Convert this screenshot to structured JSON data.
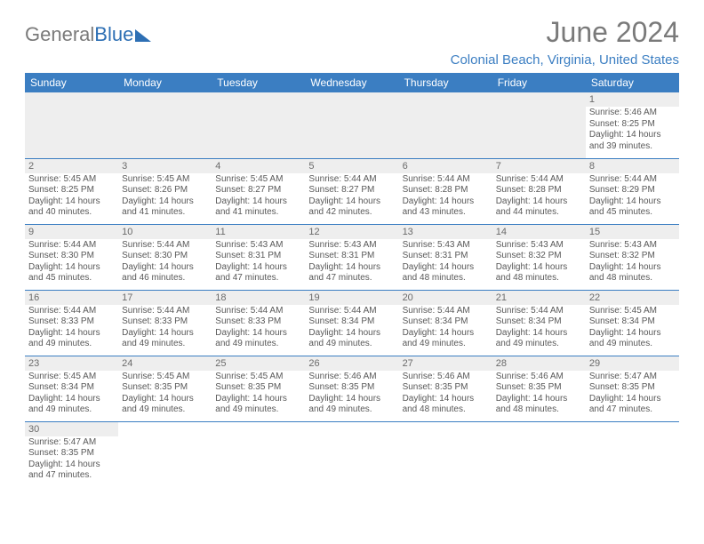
{
  "logo": {
    "gray_text": "General",
    "blue_text": "Blue"
  },
  "header": {
    "month_title": "June 2024",
    "location": "Colonial Beach, Virginia, United States"
  },
  "style": {
    "accent_color": "#3b7ec2",
    "header_bg": "#3b7ec2",
    "header_text": "#ffffff",
    "daynum_bg": "#eeeeee",
    "body_text": "#585858",
    "title_color": "#7a7a7a"
  },
  "weekdays": [
    "Sunday",
    "Monday",
    "Tuesday",
    "Wednesday",
    "Thursday",
    "Friday",
    "Saturday"
  ],
  "weeks": [
    [
      null,
      null,
      null,
      null,
      null,
      null,
      {
        "n": "1",
        "sr": "5:46 AM",
        "ss": "8:25 PM",
        "dl": "14 hours and 39 minutes."
      }
    ],
    [
      {
        "n": "2",
        "sr": "5:45 AM",
        "ss": "8:25 PM",
        "dl": "14 hours and 40 minutes."
      },
      {
        "n": "3",
        "sr": "5:45 AM",
        "ss": "8:26 PM",
        "dl": "14 hours and 41 minutes."
      },
      {
        "n": "4",
        "sr": "5:45 AM",
        "ss": "8:27 PM",
        "dl": "14 hours and 41 minutes."
      },
      {
        "n": "5",
        "sr": "5:44 AM",
        "ss": "8:27 PM",
        "dl": "14 hours and 42 minutes."
      },
      {
        "n": "6",
        "sr": "5:44 AM",
        "ss": "8:28 PM",
        "dl": "14 hours and 43 minutes."
      },
      {
        "n": "7",
        "sr": "5:44 AM",
        "ss": "8:28 PM",
        "dl": "14 hours and 44 minutes."
      },
      {
        "n": "8",
        "sr": "5:44 AM",
        "ss": "8:29 PM",
        "dl": "14 hours and 45 minutes."
      }
    ],
    [
      {
        "n": "9",
        "sr": "5:44 AM",
        "ss": "8:30 PM",
        "dl": "14 hours and 45 minutes."
      },
      {
        "n": "10",
        "sr": "5:44 AM",
        "ss": "8:30 PM",
        "dl": "14 hours and 46 minutes."
      },
      {
        "n": "11",
        "sr": "5:43 AM",
        "ss": "8:31 PM",
        "dl": "14 hours and 47 minutes."
      },
      {
        "n": "12",
        "sr": "5:43 AM",
        "ss": "8:31 PM",
        "dl": "14 hours and 47 minutes."
      },
      {
        "n": "13",
        "sr": "5:43 AM",
        "ss": "8:31 PM",
        "dl": "14 hours and 48 minutes."
      },
      {
        "n": "14",
        "sr": "5:43 AM",
        "ss": "8:32 PM",
        "dl": "14 hours and 48 minutes."
      },
      {
        "n": "15",
        "sr": "5:43 AM",
        "ss": "8:32 PM",
        "dl": "14 hours and 48 minutes."
      }
    ],
    [
      {
        "n": "16",
        "sr": "5:44 AM",
        "ss": "8:33 PM",
        "dl": "14 hours and 49 minutes."
      },
      {
        "n": "17",
        "sr": "5:44 AM",
        "ss": "8:33 PM",
        "dl": "14 hours and 49 minutes."
      },
      {
        "n": "18",
        "sr": "5:44 AM",
        "ss": "8:33 PM",
        "dl": "14 hours and 49 minutes."
      },
      {
        "n": "19",
        "sr": "5:44 AM",
        "ss": "8:34 PM",
        "dl": "14 hours and 49 minutes."
      },
      {
        "n": "20",
        "sr": "5:44 AM",
        "ss": "8:34 PM",
        "dl": "14 hours and 49 minutes."
      },
      {
        "n": "21",
        "sr": "5:44 AM",
        "ss": "8:34 PM",
        "dl": "14 hours and 49 minutes."
      },
      {
        "n": "22",
        "sr": "5:45 AM",
        "ss": "8:34 PM",
        "dl": "14 hours and 49 minutes."
      }
    ],
    [
      {
        "n": "23",
        "sr": "5:45 AM",
        "ss": "8:34 PM",
        "dl": "14 hours and 49 minutes."
      },
      {
        "n": "24",
        "sr": "5:45 AM",
        "ss": "8:35 PM",
        "dl": "14 hours and 49 minutes."
      },
      {
        "n": "25",
        "sr": "5:45 AM",
        "ss": "8:35 PM",
        "dl": "14 hours and 49 minutes."
      },
      {
        "n": "26",
        "sr": "5:46 AM",
        "ss": "8:35 PM",
        "dl": "14 hours and 49 minutes."
      },
      {
        "n": "27",
        "sr": "5:46 AM",
        "ss": "8:35 PM",
        "dl": "14 hours and 48 minutes."
      },
      {
        "n": "28",
        "sr": "5:46 AM",
        "ss": "8:35 PM",
        "dl": "14 hours and 48 minutes."
      },
      {
        "n": "29",
        "sr": "5:47 AM",
        "ss": "8:35 PM",
        "dl": "14 hours and 47 minutes."
      }
    ],
    [
      {
        "n": "30",
        "sr": "5:47 AM",
        "ss": "8:35 PM",
        "dl": "14 hours and 47 minutes."
      },
      null,
      null,
      null,
      null,
      null,
      null
    ]
  ],
  "labels": {
    "sunrise": "Sunrise:",
    "sunset": "Sunset:",
    "daylight": "Daylight:"
  }
}
